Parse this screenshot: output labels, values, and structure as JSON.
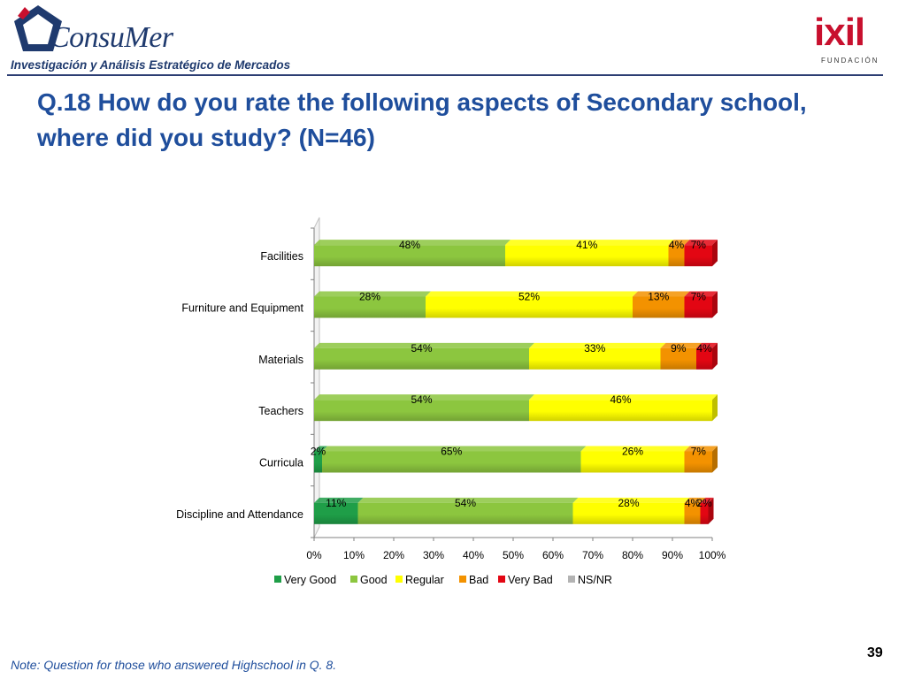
{
  "header": {
    "logo_left": {
      "name": "ConsuMer",
      "tagline": "Investigación y Análisis Estratégico de Mercados"
    },
    "logo_right": {
      "name": "ixil",
      "sub": "FUNDACIÓN"
    }
  },
  "title": "Q.18  How do you rate the following aspects of Secondary school, where did you study? (N=46)",
  "note": "Note: Question for those who answered Highschool in Q. 8.",
  "page_number": "39",
  "colors": {
    "very_good": "#1f9e48",
    "good": "#8cc63f",
    "regular": "#ffff00",
    "bad": "#f39200",
    "very_bad": "#e30613",
    "nsnr": "#b3b3b3"
  },
  "chart_data": {
    "type": "bar",
    "orientation": "horizontal",
    "stacked": true,
    "categories": [
      "Facilities",
      "Furniture and Equipment",
      "Materials",
      "Teachers",
      "Curricula",
      "Discipline and Attendance"
    ],
    "series": [
      {
        "name": "Very Good",
        "color": "#1f9e48",
        "values": [
          0,
          0,
          0,
          0,
          2,
          11
        ],
        "labels": [
          "",
          "",
          "",
          "",
          "2%",
          "11%"
        ]
      },
      {
        "name": "Good",
        "color": "#8cc63f",
        "values": [
          48,
          28,
          54,
          54,
          65,
          54
        ],
        "labels": [
          "48%",
          "28%",
          "54%",
          "54%",
          "65%",
          "54%"
        ]
      },
      {
        "name": "Regular",
        "color": "#ffff00",
        "values": [
          41,
          52,
          33,
          46,
          26,
          28
        ],
        "labels": [
          "41%",
          "52%",
          "33%",
          "46%",
          "26%",
          "28%"
        ]
      },
      {
        "name": "Bad",
        "color": "#f39200",
        "values": [
          4,
          13,
          9,
          0,
          7,
          4
        ],
        "labels": [
          "4%",
          "13%",
          "9%",
          "",
          "7%",
          "4%"
        ]
      },
      {
        "name": "Very Bad",
        "color": "#e30613",
        "values": [
          7,
          7,
          4,
          0,
          0,
          2
        ],
        "labels": [
          "7%",
          "7%",
          "4%",
          "",
          "",
          "2%"
        ]
      },
      {
        "name": "NS/NR",
        "color": "#b3b3b3",
        "values": [
          0,
          0,
          0,
          0,
          0,
          0
        ],
        "labels": [
          "",
          "",
          "",
          "",
          "",
          ""
        ]
      }
    ],
    "xlim": [
      0,
      100
    ],
    "xticks": [
      "0%",
      "10%",
      "20%",
      "30%",
      "40%",
      "50%",
      "60%",
      "70%",
      "80%",
      "90%",
      "100%"
    ],
    "legend_position": "bottom",
    "grid": false
  }
}
